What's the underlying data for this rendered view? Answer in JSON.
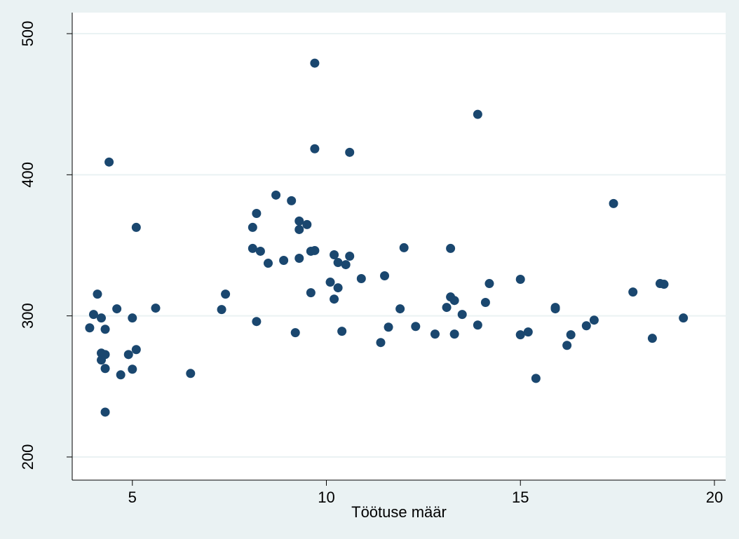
{
  "chart_data": {
    "type": "scatter",
    "x_label": "Töötuse määr",
    "xlim": [
      3.45,
      20.29
    ],
    "ylim": [
      183.6,
      514.9
    ],
    "xticks": [
      5,
      10,
      15,
      20
    ],
    "yticks": [
      200,
      300,
      400,
      500
    ],
    "grid": true,
    "color": "#1a476f",
    "x": [
      3.9,
      4.0,
      4.1,
      4.2,
      4.2,
      4.2,
      4.3,
      4.3,
      4.3,
      4.3,
      4.4,
      4.6,
      4.7,
      4.9,
      5.0,
      5.0,
      5.1,
      5.1,
      5.6,
      6.5,
      7.3,
      7.4,
      8.1,
      8.1,
      8.2,
      8.2,
      8.3,
      8.5,
      8.7,
      8.9,
      9.1,
      9.2,
      9.3,
      9.3,
      9.3,
      9.5,
      9.6,
      9.6,
      9.7,
      9.7,
      9.7,
      10.1,
      10.2,
      10.2,
      10.3,
      10.3,
      10.4,
      10.5,
      10.6,
      10.6,
      10.9,
      11.4,
      11.5,
      11.6,
      11.9,
      12.0,
      12.3,
      12.8,
      13.1,
      13.2,
      13.2,
      13.3,
      13.3,
      13.5,
      13.9,
      13.9,
      14.1,
      14.2,
      15.0,
      15.0,
      15.2,
      15.4,
      15.9,
      15.9,
      16.2,
      16.3,
      16.7,
      16.9,
      17.4,
      17.9,
      18.4,
      18.6,
      18.7,
      19.2
    ],
    "y": [
      291.5,
      301,
      315.4,
      298.5,
      273.6,
      268.7,
      290.5,
      272.6,
      262.7,
      231.8,
      409,
      305,
      258.2,
      272.6,
      298.5,
      262.2,
      362.7,
      276.1,
      305.5,
      259.2,
      304.5,
      315.4,
      362.7,
      347.8,
      372.6,
      296,
      345.8,
      337.3,
      385.6,
      339.3,
      381.6,
      288.1,
      367.2,
      361.2,
      340.8,
      364.7,
      345.8,
      316.4,
      479.1,
      418.4,
      346.3,
      323.9,
      343.3,
      311.9,
      337.8,
      319.9,
      289.1,
      336.3,
      342.3,
      415.9,
      326.4,
      281.1,
      328.4,
      292,
      305,
      348.3,
      292.5,
      287.1,
      306,
      347.8,
      313.4,
      310.9,
      287.1,
      301,
      442.8,
      293.5,
      309.5,
      322.9,
      325.9,
      286.6,
      288.6,
      255.7,
      306,
      305,
      279.1,
      286.6,
      293,
      297,
      379.6,
      316.9,
      284.1,
      322.9,
      322.4,
      298.5
    ]
  }
}
